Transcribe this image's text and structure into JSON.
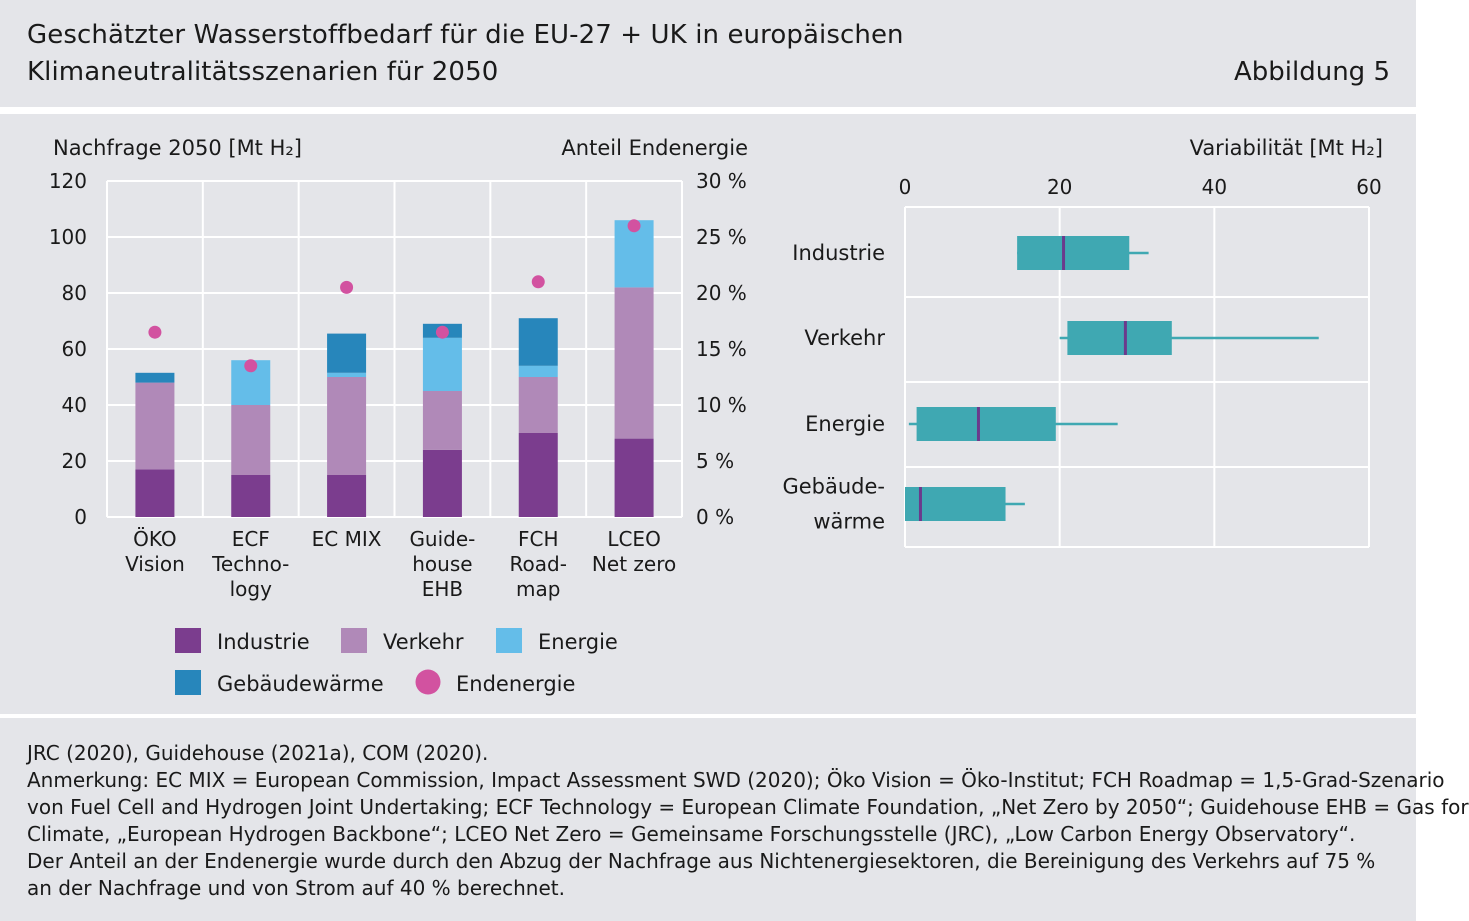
{
  "header": {
    "title_line1": "Geschätzter Wasserstoffbedarf für die EU-27 + UK in europäischen",
    "title_line2": "Klimaneutralitätsszenarien für 2050",
    "figure_label": "Abbildung 5"
  },
  "footer": {
    "lines": [
      "JRC (2020), Guidehouse (2021a), COM (2020).",
      "Anmerkung: EC MIX = European Commission, Impact Assessment SWD (2020); Öko Vision = Öko-Institut; FCH Roadmap = 1,5-Grad-Szenario",
      "von Fuel Cell and Hydrogen Joint Undertaking; ECF Technology = European Climate Foundation, „Net Zero by 2050“; Guidehouse EHB = Gas for",
      "Climate, „European Hydrogen Backbone“; LCEO Net Zero = Gemeinsame Forschungsstelle (JRC), „Low Carbon Energy Observatory“.",
      "Der Anteil an der Endenergie wurde durch den Abzug der Nachfrage aus Nichtenergiesektoren, die Bereinigung des Verkehrs auf 75 %",
      "an der Nachfrage und von Strom auf 40 % berechnet."
    ]
  },
  "chart_data": [
    {
      "type": "bar",
      "stacked": true,
      "ylabel": "Nachfrage 2050  [Mt H₂]",
      "y2label": "Anteil Endenergie",
      "ylim": [
        0,
        120
      ],
      "yticks": [
        "0",
        "20",
        "40",
        "60",
        "80",
        "100",
        "120"
      ],
      "y2lim": [
        0,
        30
      ],
      "y2ticks": [
        "0 %",
        "5 %",
        "10 %",
        "15 %",
        "20 %",
        "25 %",
        "30 %"
      ],
      "grid": true,
      "legend_position": "bottom",
      "categories": [
        [
          "ÖKO",
          "Vision"
        ],
        [
          "ECF",
          "Techno-",
          "logy"
        ],
        [
          "EC MIX"
        ],
        [
          "Guide-",
          "house",
          "EHB"
        ],
        [
          "FCH",
          "Road-",
          "map"
        ],
        [
          "LCEO",
          "Net zero"
        ]
      ],
      "series": [
        {
          "name": "Industrie",
          "color": "#7b3d8e",
          "values": [
            17,
            15,
            15,
            24,
            30,
            28
          ]
        },
        {
          "name": "Verkehr",
          "color": "#b089b8",
          "values": [
            31,
            25,
            35,
            21,
            20,
            54
          ]
        },
        {
          "name": "Energie",
          "color": "#64bde9",
          "values": [
            0,
            16,
            1.5,
            19,
            4,
            24
          ]
        },
        {
          "name": "Gebäudewärme",
          "color": "#2786bb",
          "values": [
            3.5,
            0,
            14,
            5,
            17,
            0
          ]
        }
      ],
      "overlay": {
        "name": "Endenergie",
        "type": "scatter",
        "axis": "right",
        "color": "#d252a0",
        "values": [
          16.5,
          13.5,
          20.5,
          16.5,
          21,
          26
        ]
      }
    },
    {
      "type": "boxplot",
      "orientation": "horizontal",
      "xlabel": "Variabilität [Mt H₂]",
      "xlim": [
        0,
        60
      ],
      "xticks": [
        "0",
        "20",
        "40",
        "60"
      ],
      "grid": true,
      "color": "#3fa8b2",
      "median_color": "#6b3a8c",
      "categories": [
        [
          "Industrie"
        ],
        [
          "Verkehr"
        ],
        [
          "Energie"
        ],
        [
          "Gebäude-",
          "wärme"
        ]
      ],
      "boxes": [
        {
          "min": 14.5,
          "q1": 14.5,
          "median": 20.5,
          "q3": 29,
          "max": 31.5
        },
        {
          "min": 20,
          "q1": 21,
          "median": 28.5,
          "q3": 34.5,
          "max": 53.5
        },
        {
          "min": 0.5,
          "q1": 1.5,
          "median": 9.5,
          "q3": 19.5,
          "max": 27.5
        },
        {
          "min": 0,
          "q1": 0,
          "median": 2,
          "q3": 13,
          "max": 15.5
        }
      ]
    }
  ]
}
